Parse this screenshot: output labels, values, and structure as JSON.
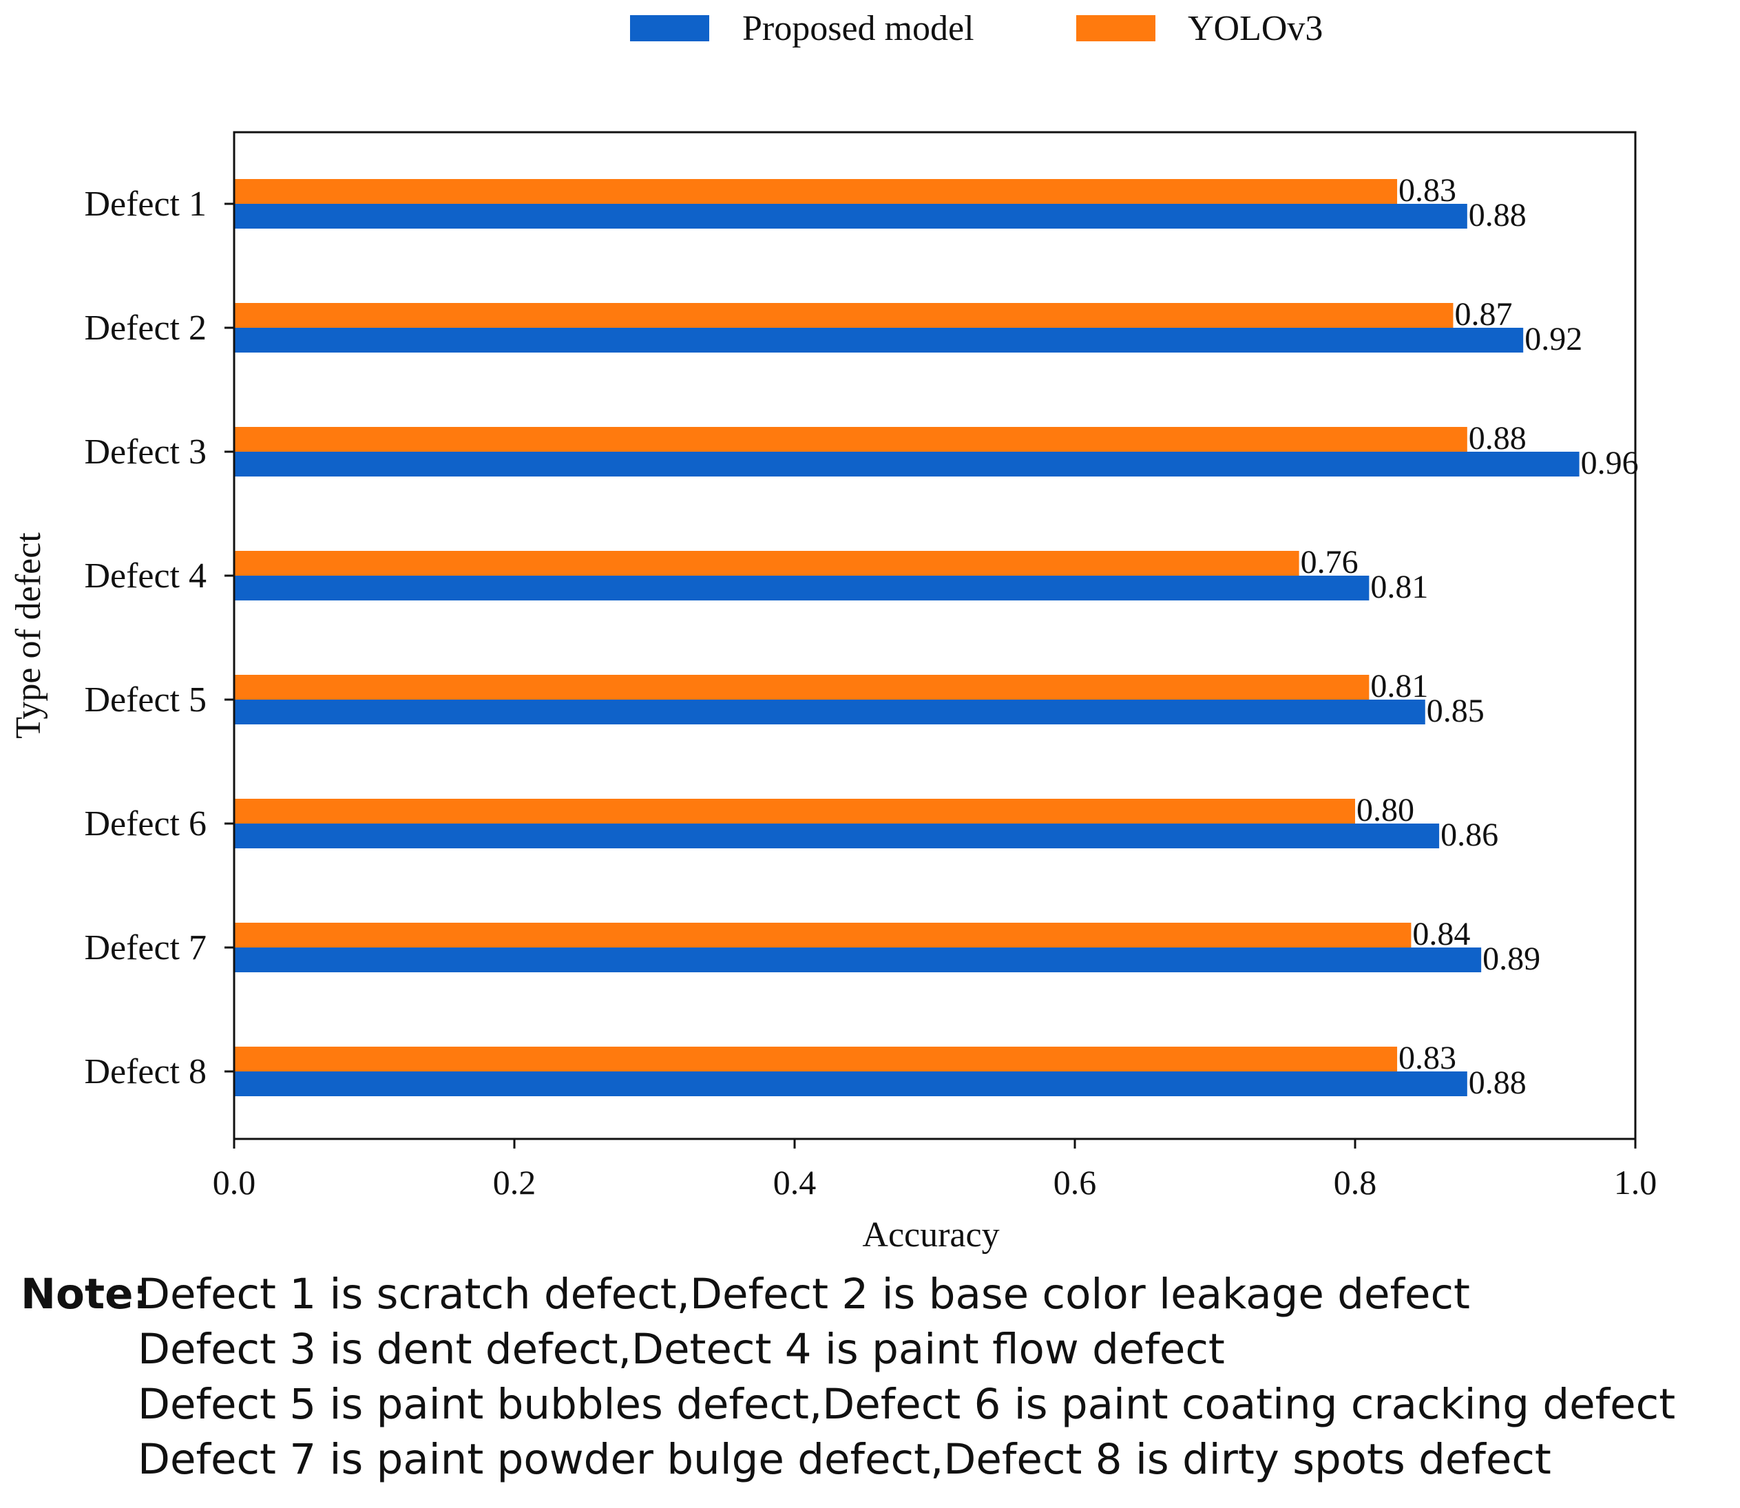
{
  "chart_data": {
    "type": "bar",
    "orientation": "horizontal",
    "categories": [
      "Defect 1",
      "Defect 2",
      "Defect 3",
      "Defect 4",
      "Defect 5",
      "Defect 6",
      "Defect 7",
      "Defect 8"
    ],
    "series": [
      {
        "name": "Proposed model",
        "color": "#0f62c9",
        "values": [
          0.88,
          0.92,
          0.96,
          0.81,
          0.85,
          0.86,
          0.89,
          0.88
        ],
        "labels": [
          "0.88",
          "0.92",
          "0.96",
          "0.81",
          "0.85",
          "0.86",
          "0.89",
          "0.88"
        ]
      },
      {
        "name": "YOLOv3",
        "color": "#ff7a0e",
        "values": [
          0.83,
          0.87,
          0.88,
          0.76,
          0.81,
          0.8,
          0.84,
          0.83
        ],
        "labels": [
          "0.83",
          "0.87",
          "0.88",
          "0.76",
          "0.81",
          "0.80",
          "0.84",
          "0.83"
        ]
      }
    ],
    "xlabel": "Accuracy",
    "ylabel": "Type of defect",
    "xlim": [
      0.0,
      1.0
    ],
    "xticks": [
      "0.0",
      "0.2",
      "0.4",
      "0.6",
      "0.8",
      "1.0"
    ],
    "legend_position": "top-center",
    "grid": false
  },
  "note": {
    "label": "Note:",
    "lines": [
      "Defect 1 is scratch defect,Defect 2 is base color leakage defect",
      "Defect 3 is dent defect,Detect 4 is paint flow defect",
      "Defect 5 is paint bubbles defect,Defect 6 is paint coating cracking defect",
      "Defect 7 is paint powder bulge defect,Defect 8 is dirty spots defect"
    ]
  }
}
